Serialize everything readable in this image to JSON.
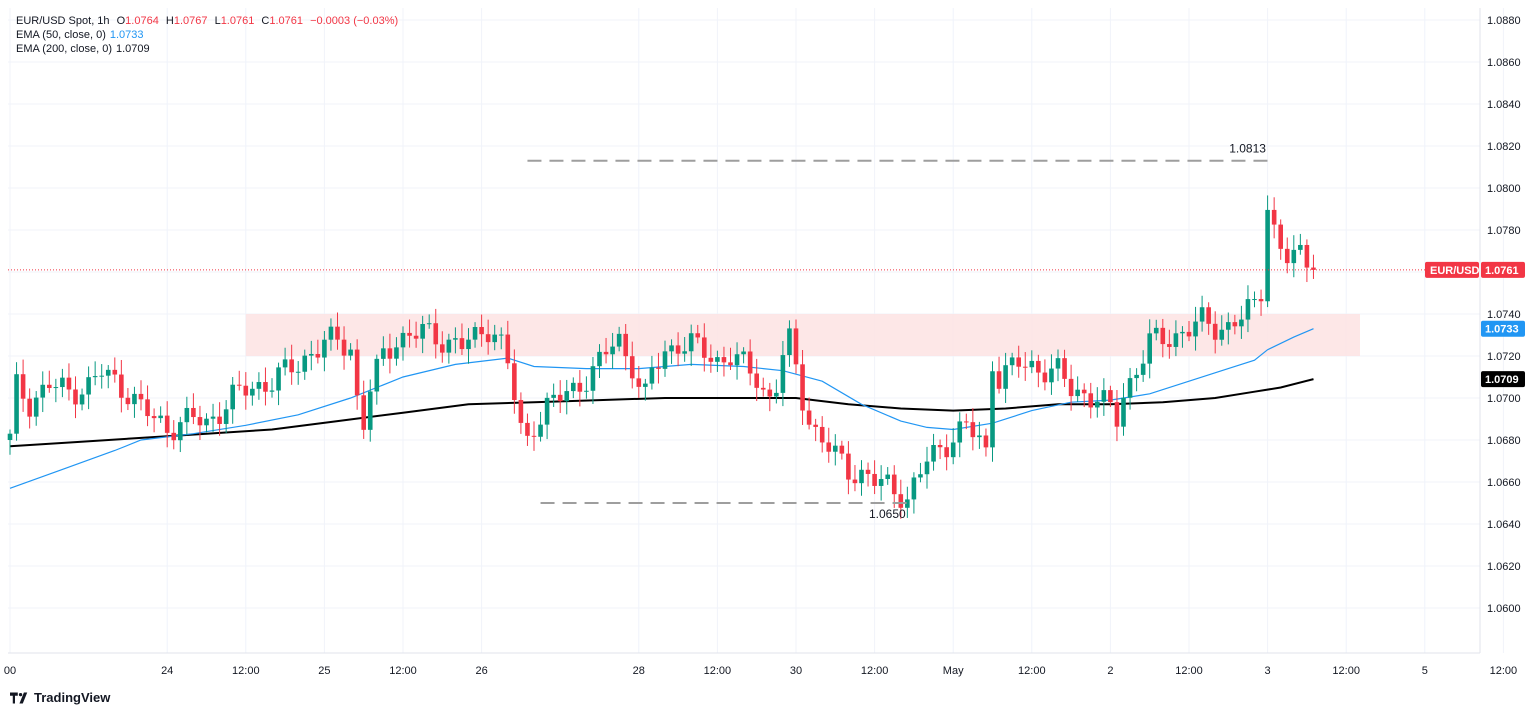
{
  "legend": {
    "symbol": "EUR/USD Spot, 1h",
    "open_label": "O",
    "open": "1.0764",
    "high_label": "H",
    "high": "1.0767",
    "low_label": "L",
    "low": "1.0761",
    "close_label": "C",
    "close": "1.0761",
    "change": "−0.0003 (−0.03%)",
    "ema50_label": "EMA (50, close, 0)",
    "ema50_value": "1.0733",
    "ema200_label": "EMA (200, close, 0)",
    "ema200_value": "1.0709"
  },
  "brand": {
    "name": "TradingView"
  },
  "colors": {
    "up": "#089981",
    "down": "#f23645",
    "ema50": "#2196f3",
    "ema200": "#000000",
    "zone": "#fde3e3",
    "grid": "#f0f3fa",
    "guide": "#9e9e9e",
    "last_price_line": "#f23645"
  },
  "chart_data": {
    "type": "candlestick",
    "interval": "1h",
    "ylim": [
      1.0585,
      1.0885
    ],
    "y_ticks": [
      "1.0600",
      "1.0620",
      "1.0640",
      "1.0660",
      "1.0680",
      "1.0700",
      "1.0720",
      "1.0740",
      "1.0760",
      "1.0780",
      "1.0800",
      "1.0820",
      "1.0840",
      "1.0860",
      "1.0880"
    ],
    "x_ticks": [
      {
        "label": "00",
        "hour": 0
      },
      {
        "label": "24",
        "hour": 24
      },
      {
        "label": "12:00",
        "hour": 36
      },
      {
        "label": "25",
        "hour": 48
      },
      {
        "label": "12:00",
        "hour": 60
      },
      {
        "label": "26",
        "hour": 72
      },
      {
        "label": "28",
        "hour": 96
      },
      {
        "label": "12:00",
        "hour": 108
      },
      {
        "label": "30",
        "hour": 120
      },
      {
        "label": "12:00",
        "hour": 132
      },
      {
        "label": "May",
        "hour": 144
      },
      {
        "label": "12:00",
        "hour": 156
      },
      {
        "label": "2",
        "hour": 168
      },
      {
        "label": "12:00",
        "hour": 180
      },
      {
        "label": "3",
        "hour": 192
      },
      {
        "label": "12:00",
        "hour": 204
      },
      {
        "label": "5",
        "hour": 216
      },
      {
        "label": "12:00",
        "hour": 228
      }
    ],
    "price_path": [
      [
        0,
        1.068
      ],
      [
        1,
        1.0705
      ],
      [
        3,
        1.0698
      ],
      [
        6,
        1.0706
      ],
      [
        9,
        1.0703
      ],
      [
        12,
        1.0706
      ],
      [
        14,
        1.0712
      ],
      [
        16,
        1.0708
      ],
      [
        18,
        1.0703
      ],
      [
        20,
        1.0695
      ],
      [
        22,
        1.069
      ],
      [
        24,
        1.0686
      ],
      [
        26,
        1.0688
      ],
      [
        28,
        1.069
      ],
      [
        30,
        1.0688
      ],
      [
        32,
        1.0694
      ],
      [
        34,
        1.07
      ],
      [
        36,
        1.0704
      ],
      [
        38,
        1.0706
      ],
      [
        40,
        1.0708
      ],
      [
        42,
        1.0712
      ],
      [
        44,
        1.0716
      ],
      [
        46,
        1.0722
      ],
      [
        48,
        1.0726
      ],
      [
        50,
        1.0727
      ],
      [
        52,
        1.0724
      ],
      [
        53,
        1.07
      ],
      [
        54,
        1.0688
      ],
      [
        55,
        1.0704
      ],
      [
        57,
        1.072
      ],
      [
        59,
        1.0728
      ],
      [
        61,
        1.073
      ],
      [
        63,
        1.0731
      ],
      [
        65,
        1.0729
      ],
      [
        67,
        1.0727
      ],
      [
        69,
        1.0725
      ],
      [
        71,
        1.0728
      ],
      [
        73,
        1.0734
      ],
      [
        74,
        1.0732
      ],
      [
        75,
        1.0726
      ],
      [
        76,
        1.0716
      ],
      [
        77,
        1.07
      ],
      [
        78,
        1.0684
      ],
      [
        79,
        1.068
      ],
      [
        80,
        1.0688
      ],
      [
        82,
        1.0696
      ],
      [
        84,
        1.07
      ],
      [
        86,
        1.0704
      ],
      [
        88,
        1.071
      ],
      [
        90,
        1.0716
      ],
      [
        92,
        1.0726
      ],
      [
        93,
        1.0728
      ],
      [
        94,
        1.0721
      ],
      [
        95,
        1.0716
      ],
      [
        96,
        1.0706
      ],
      [
        97,
        1.07
      ],
      [
        98,
        1.0712
      ],
      [
        100,
        1.0722
      ],
      [
        102,
        1.0726
      ],
      [
        104,
        1.0725
      ],
      [
        106,
        1.0722
      ],
      [
        108,
        1.0718
      ],
      [
        110,
        1.072
      ],
      [
        112,
        1.0715
      ],
      [
        114,
        1.071
      ],
      [
        115,
        1.0704
      ],
      [
        116,
        1.07
      ],
      [
        117,
        1.0706
      ],
      [
        118,
        1.072
      ],
      [
        119,
        1.0726
      ],
      [
        120,
        1.0714
      ],
      [
        121,
        1.07
      ],
      [
        122,
        1.069
      ],
      [
        123,
        1.0684
      ],
      [
        124,
        1.068
      ],
      [
        126,
        1.0672
      ],
      [
        128,
        1.0666
      ],
      [
        130,
        1.0664
      ],
      [
        132,
        1.066
      ],
      [
        134,
        1.0658
      ],
      [
        136,
        1.0655
      ],
      [
        137,
        1.0652
      ],
      [
        138,
        1.0658
      ],
      [
        139,
        1.0664
      ],
      [
        140,
        1.067
      ],
      [
        142,
        1.0676
      ],
      [
        144,
        1.0682
      ],
      [
        146,
        1.0686
      ],
      [
        148,
        1.068
      ],
      [
        149,
        1.0674
      ],
      [
        150,
        1.0718
      ],
      [
        151,
        1.071
      ],
      [
        152,
        1.0712
      ],
      [
        154,
        1.0716
      ],
      [
        156,
        1.0715
      ],
      [
        158,
        1.0714
      ],
      [
        160,
        1.0712
      ],
      [
        162,
        1.0704
      ],
      [
        164,
        1.0702
      ],
      [
        166,
        1.07
      ],
      [
        168,
        1.0694
      ],
      [
        169,
        1.069
      ],
      [
        170,
        1.0702
      ],
      [
        172,
        1.0714
      ],
      [
        174,
        1.0726
      ],
      [
        176,
        1.0728
      ],
      [
        178,
        1.073
      ],
      [
        180,
        1.0733
      ],
      [
        182,
        1.0736
      ],
      [
        184,
        1.0734
      ],
      [
        186,
        1.0734
      ],
      [
        188,
        1.0738
      ],
      [
        190,
        1.0744
      ],
      [
        191,
        1.0752
      ],
      [
        192,
        1.0794
      ],
      [
        193,
        1.078
      ],
      [
        194,
        1.077
      ],
      [
        195,
        1.0766
      ],
      [
        196,
        1.0767
      ],
      [
        197,
        1.0768
      ],
      [
        198,
        1.0766
      ],
      [
        199,
        1.0761
      ]
    ],
    "ema50": [
      [
        0,
        1.0657
      ],
      [
        8,
        1.0666
      ],
      [
        16,
        1.0675
      ],
      [
        20,
        1.068
      ],
      [
        28,
        1.0683
      ],
      [
        36,
        1.0687
      ],
      [
        44,
        1.0692
      ],
      [
        52,
        1.07
      ],
      [
        60,
        1.071
      ],
      [
        68,
        1.0716
      ],
      [
        76,
        1.0719
      ],
      [
        80,
        1.0715
      ],
      [
        88,
        1.0714
      ],
      [
        96,
        1.0714
      ],
      [
        104,
        1.0716
      ],
      [
        112,
        1.0715
      ],
      [
        118,
        1.0713
      ],
      [
        124,
        1.0708
      ],
      [
        130,
        1.0697
      ],
      [
        136,
        1.0689
      ],
      [
        140,
        1.0686
      ],
      [
        144,
        1.0685
      ],
      [
        150,
        1.0688
      ],
      [
        156,
        1.0694
      ],
      [
        162,
        1.0698
      ],
      [
        168,
        1.0699
      ],
      [
        174,
        1.0702
      ],
      [
        180,
        1.0708
      ],
      [
        186,
        1.0714
      ],
      [
        190,
        1.0718
      ],
      [
        192,
        1.0723
      ],
      [
        196,
        1.0729
      ],
      [
        199,
        1.0733
      ]
    ],
    "ema200": [
      [
        0,
        1.0677
      ],
      [
        10,
        1.0679
      ],
      [
        20,
        1.0681
      ],
      [
        30,
        1.0683
      ],
      [
        40,
        1.0685
      ],
      [
        50,
        1.0689
      ],
      [
        60,
        1.0693
      ],
      [
        70,
        1.0697
      ],
      [
        80,
        1.0698
      ],
      [
        90,
        1.0699
      ],
      [
        100,
        1.07
      ],
      [
        110,
        1.07
      ],
      [
        120,
        1.07
      ],
      [
        128,
        1.0697
      ],
      [
        136,
        1.0695
      ],
      [
        144,
        1.0694
      ],
      [
        152,
        1.0695
      ],
      [
        160,
        1.0697
      ],
      [
        168,
        1.0697
      ],
      [
        176,
        1.0698
      ],
      [
        184,
        1.07
      ],
      [
        190,
        1.0703
      ],
      [
        194,
        1.0705
      ],
      [
        199,
        1.0709
      ]
    ],
    "resistance_zone": {
      "from": 1.072,
      "to": 1.074,
      "start_hour": 36
    },
    "annotations": [
      {
        "label": "1.0813",
        "price": 1.0813,
        "from_hour": 79,
        "to_hour": 192
      },
      {
        "label": "1.0650",
        "price": 1.065,
        "from_hour": 81,
        "to_hour": 137
      }
    ],
    "price_tags": [
      {
        "label": "EUR/USD",
        "value": "1.0761",
        "price": 1.0761,
        "style": "last"
      },
      {
        "value": "1.0733",
        "price": 1.0733,
        "style": "ema50"
      },
      {
        "value": "1.0709",
        "price": 1.0709,
        "style": "ema200"
      }
    ]
  }
}
